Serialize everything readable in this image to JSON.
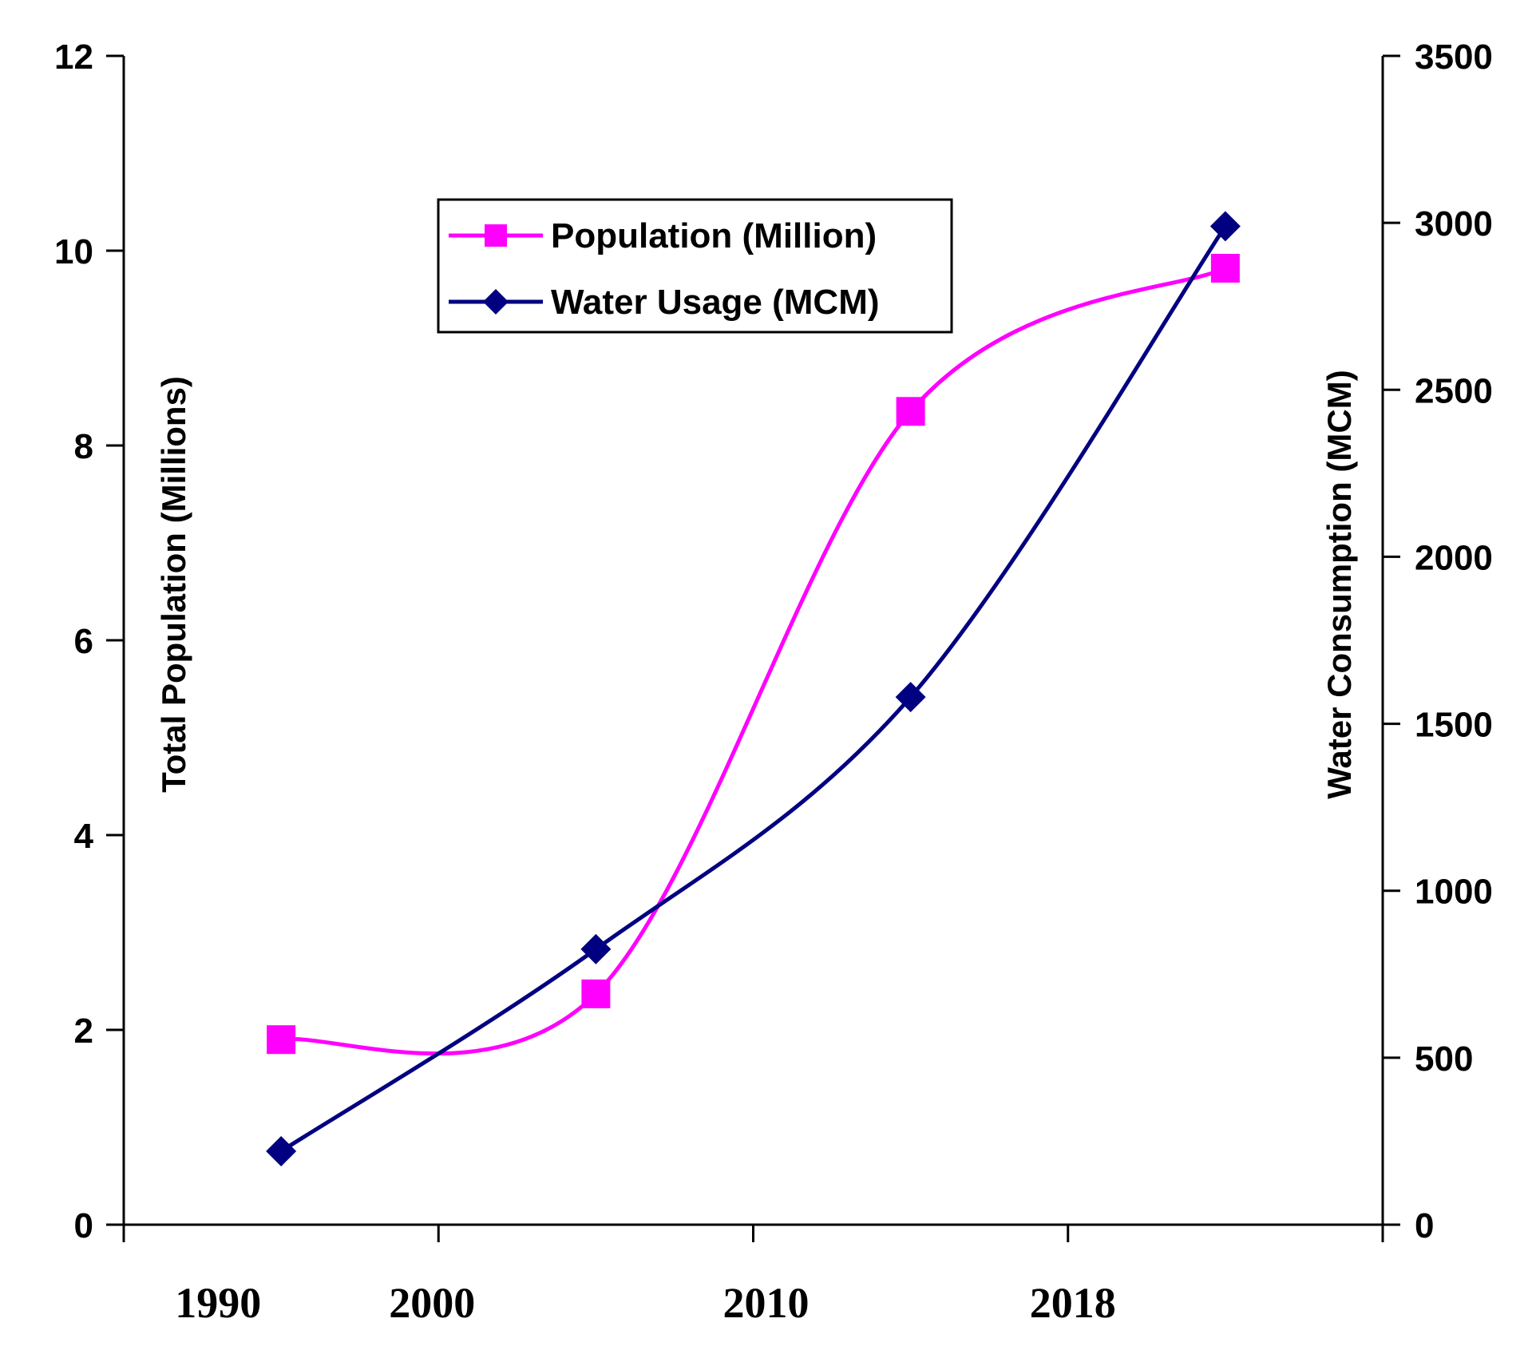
{
  "chart_data": {
    "type": "line",
    "title": "",
    "x_categories": [
      "1990",
      "2000",
      "2010",
      "2018"
    ],
    "x_range": [
      1990,
      2030
    ],
    "y_left": {
      "label": "Total Population (Millions)",
      "range": [
        0,
        12
      ],
      "ticks": [
        0,
        2,
        4,
        6,
        8,
        10,
        12
      ]
    },
    "y_right": {
      "label": "Water Consumption (MCM)",
      "range": [
        0,
        3500
      ],
      "ticks": [
        0,
        500,
        1000,
        1500,
        2000,
        2500,
        3000,
        3500
      ]
    },
    "legend": {
      "placement": "top-center",
      "boxed": true
    },
    "grid": false,
    "series": [
      {
        "name": "Population (Million)",
        "axis": "left",
        "color": "#ff00ff",
        "marker": "square",
        "smooth": true,
        "points": [
          {
            "x": 1995,
            "y": 1.9
          },
          {
            "x": 2005,
            "y": 2.37
          },
          {
            "x": 2015,
            "y": 8.35
          },
          {
            "x": 2025,
            "y": 9.82
          }
        ]
      },
      {
        "name": "Water Usage (MCM)",
        "axis": "right",
        "color": "#000080",
        "marker": "diamond",
        "smooth": true,
        "points": [
          {
            "x": 1995,
            "y": 220
          },
          {
            "x": 2005,
            "y": 825
          },
          {
            "x": 2015,
            "y": 1580
          },
          {
            "x": 2025,
            "y": 2990
          }
        ]
      }
    ]
  }
}
